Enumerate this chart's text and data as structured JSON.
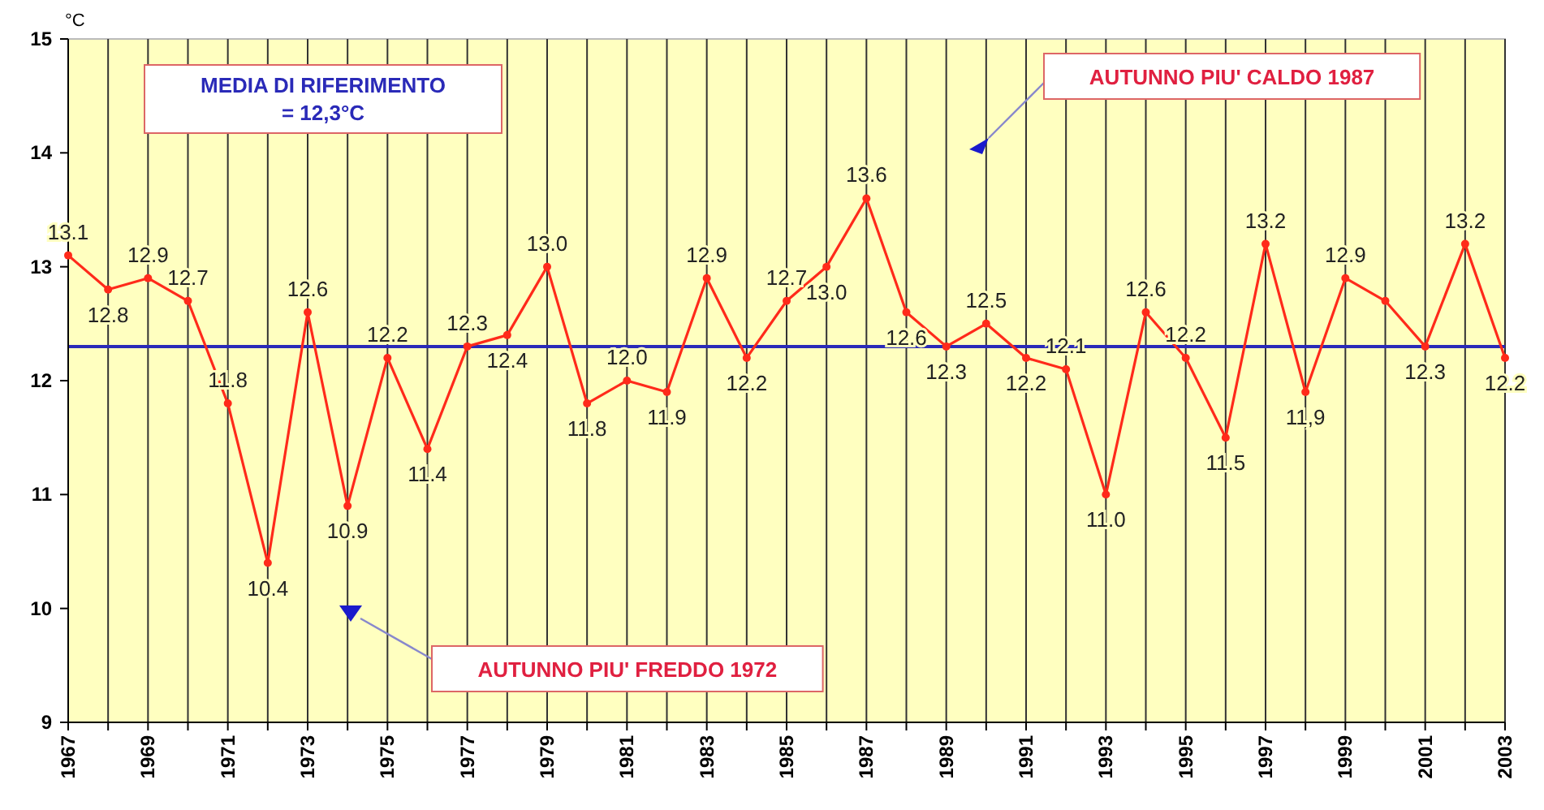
{
  "chart_data": {
    "type": "line",
    "ylabel": "°C",
    "x": [
      1967,
      1968,
      1969,
      1970,
      1971,
      1972,
      1973,
      1974,
      1975,
      1976,
      1977,
      1978,
      1979,
      1980,
      1981,
      1982,
      1983,
      1984,
      1985,
      1986,
      1987,
      1988,
      1989,
      1990,
      1991,
      1992,
      1993,
      1994,
      1995,
      1996,
      1997,
      1998,
      1999,
      2000,
      2001,
      2002,
      2003
    ],
    "series": [
      {
        "color": "#ff2a1a",
        "values": [
          13.1,
          12.8,
          12.9,
          12.7,
          11.8,
          10.4,
          12.6,
          10.9,
          12.2,
          11.4,
          12.3,
          12.4,
          13.0,
          11.8,
          12.0,
          11.9,
          12.9,
          12.2,
          12.7,
          13.0,
          13.6,
          12.6,
          12.3,
          12.5,
          12.2,
          12.1,
          11.0,
          12.6,
          12.2,
          11.5,
          13.2,
          11.9,
          12.9,
          12.7,
          12.3,
          13.2,
          12.2
        ],
        "value_labels": [
          "13.1",
          "12.8",
          "12.9",
          "12.7",
          "11.8",
          "10.4",
          "12.6",
          "10.9",
          "12.2",
          "11.4",
          "12.3",
          "12.4",
          "13.0",
          "11.8",
          "12.0",
          "11.9",
          "12.9",
          "12.2",
          "12.7",
          "13.0",
          "13.6",
          "12.6",
          "12.3",
          "12.5",
          "12.2",
          "12.1",
          "11.0",
          "12.6",
          "12.2",
          "11.5",
          "13.2",
          "11,9",
          "12.9",
          null,
          "12.3",
          "13.2",
          "12.2"
        ]
      }
    ],
    "xlim": [
      1967,
      2003
    ],
    "xticks": [
      1967,
      {
        "value": 1968,
        "label": null
      },
      1969,
      {
        "value": 1970,
        "label": null
      },
      1971,
      {
        "value": 1972,
        "label": null
      },
      1973,
      {
        "value": 1974,
        "label": null
      },
      1975,
      {
        "value": 1976,
        "label": null
      },
      1977,
      {
        "value": 1978,
        "label": null
      },
      1979,
      {
        "value": 1980,
        "label": null
      },
      1981,
      {
        "value": 1982,
        "label": null
      },
      1983,
      {
        "value": 1984,
        "label": null
      },
      1985,
      {
        "value": 1986,
        "label": null
      },
      1987,
      {
        "value": 1988,
        "label": null
      },
      1989,
      {
        "value": 1990,
        "label": null
      },
      1991,
      {
        "value": 1992,
        "label": null
      },
      1993,
      {
        "value": 1994,
        "label": null
      },
      1995,
      {
        "value": 1996,
        "label": null
      },
      1997,
      {
        "value": 1998,
        "label": null
      },
      1999,
      {
        "value": 2000,
        "label": null
      },
      2001,
      {
        "value": 2002,
        "label": null
      },
      2003
    ],
    "ylim": [
      9,
      15
    ],
    "yticks": [
      9,
      10,
      11,
      12,
      13,
      14,
      15
    ],
    "grid": "x",
    "marker": "circle",
    "line_style": "solid",
    "ref_lines": [
      {
        "axis": "y",
        "value": 12.3,
        "label": "MEDIA DI RIFERIMENTO = 12,3°C",
        "color": "#2a2ab8"
      }
    ],
    "annotations": [
      "AUTUNNO PIU' CALDO 1987",
      "AUTUNNO PIU' FREDDO 1972"
    ]
  }
}
